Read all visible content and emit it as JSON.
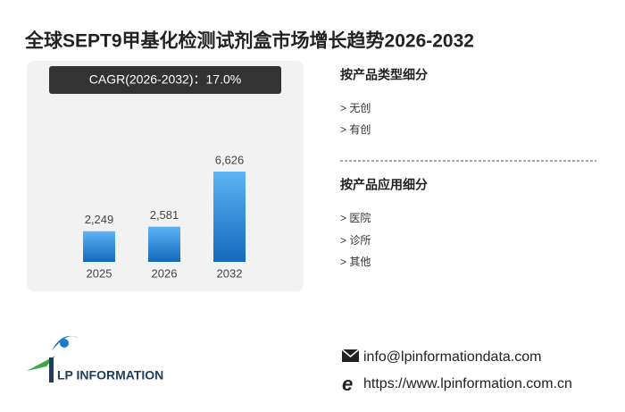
{
  "title": "全球SEPT9甲基化检测试剂盒市场增长趋势2026-2032",
  "cagr": "CAGR(2026-2032)：17.0%",
  "chart_data": {
    "type": "bar",
    "categories": [
      "2025",
      "2026",
      "2032"
    ],
    "values": [
      2249,
      2581,
      6626
    ],
    "value_labels": [
      "2,249",
      "2,581",
      "6,626"
    ],
    "color": "#2a86d8"
  },
  "segments": [
    {
      "heading": "按产品类型细分",
      "items": [
        "> 无创",
        "> 有创"
      ]
    },
    {
      "heading": "按产品应用细分",
      "items": [
        "> 医院",
        "> 诊所",
        "> 其他"
      ]
    }
  ],
  "logo": "LP INFORMATION",
  "contact": {
    "email": "info@lpinformationdata.com",
    "website": "https://www.lpinformation.com.cn"
  }
}
